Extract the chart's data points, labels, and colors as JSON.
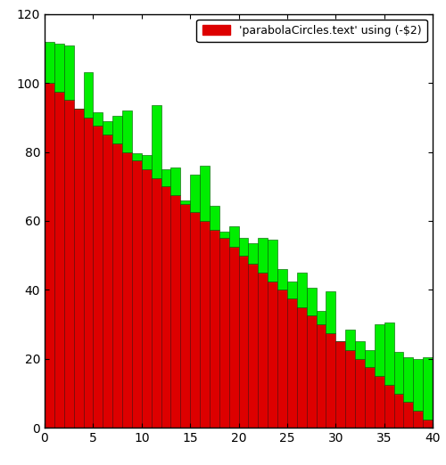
{
  "legend_label": "'parabolaCircles.text' using (-$2)",
  "xlim": [
    0,
    40
  ],
  "ylim": [
    0,
    120
  ],
  "xticks": [
    0,
    5,
    10,
    15,
    20,
    25,
    30,
    35,
    40
  ],
  "yticks": [
    0,
    20,
    40,
    60,
    80,
    100,
    120
  ],
  "red_color": "#dd0000",
  "green_color": "#00ee00",
  "bar_width": 1.0,
  "background_color": "#ffffff",
  "x_values": [
    0,
    1,
    2,
    3,
    4,
    5,
    6,
    7,
    8,
    9,
    10,
    11,
    12,
    13,
    14,
    15,
    16,
    17,
    18,
    19,
    20,
    21,
    22,
    23,
    24,
    25,
    26,
    27,
    28,
    29,
    30,
    31,
    32,
    33,
    34,
    35,
    36,
    37,
    38,
    39
  ],
  "red_values": [
    100,
    97.5,
    95,
    92.5,
    90,
    87.5,
    85,
    82.5,
    80,
    77.5,
    75,
    72.5,
    70,
    67.5,
    65,
    62.5,
    60,
    57.5,
    55,
    52.5,
    50,
    47.5,
    45,
    42.5,
    40,
    37.5,
    35,
    32.5,
    30,
    27.5,
    25,
    22.5,
    20,
    17.5,
    15,
    12.5,
    10,
    7.5,
    5,
    2.5
  ],
  "green_values": [
    12,
    14,
    16,
    0,
    13,
    4,
    4,
    8,
    12,
    2,
    4,
    21,
    5,
    8,
    1,
    11,
    16,
    7,
    2,
    6,
    5,
    6,
    10,
    12,
    6,
    5,
    10,
    8,
    4,
    12,
    0,
    6,
    5,
    5,
    15,
    18,
    12,
    13,
    15,
    18
  ]
}
